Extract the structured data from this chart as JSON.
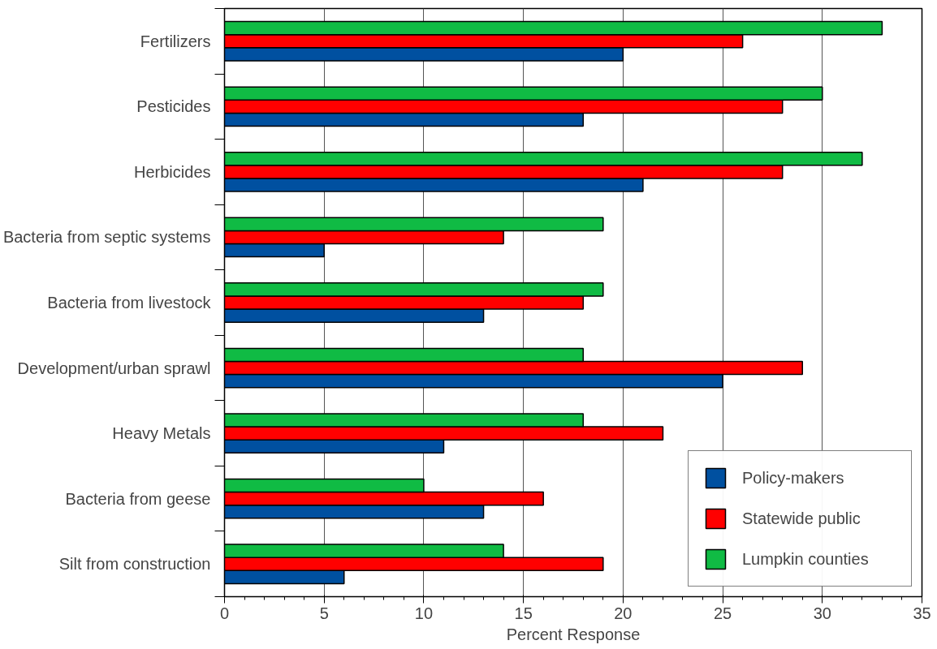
{
  "chart_data": {
    "type": "bar",
    "orientation": "horizontal",
    "xlabel": "Percent Response",
    "categories": [
      "Fertilizers",
      "Pesticides",
      "Herbicides",
      "Bacteria from septic systems",
      "Bacteria from livestock",
      "Development/urban sprawl",
      "Heavy Metals",
      "Bacteria from geese",
      "Silt from construction"
    ],
    "series": [
      {
        "name": "Policy-makers",
        "color": "#0050a0",
        "values": [
          20,
          18,
          21,
          5,
          13,
          25,
          11,
          13,
          6
        ]
      },
      {
        "name": "Statewide public",
        "color": "#ff0000",
        "values": [
          26,
          28,
          28,
          14,
          18,
          29,
          22,
          16,
          19
        ]
      },
      {
        "name": "Lumpkin counties",
        "color": "#10bb44",
        "values": [
          33,
          30,
          32,
          19,
          19,
          18,
          18,
          10,
          14
        ]
      }
    ],
    "xlim": [
      0,
      35
    ],
    "xticks": [
      0,
      5,
      10,
      15,
      20,
      25,
      30,
      35
    ],
    "grid": "x",
    "legend": "bottom right"
  }
}
